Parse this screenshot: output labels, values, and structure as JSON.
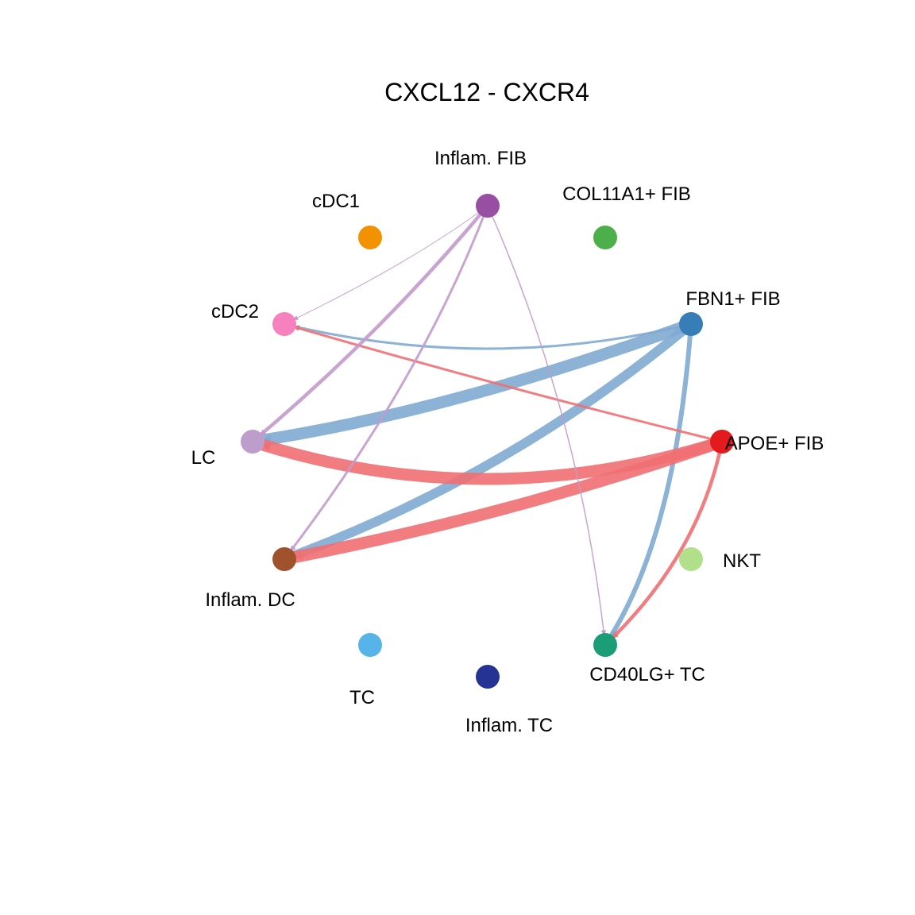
{
  "title": "CXCL12 - CXCR4",
  "nodes": [
    {
      "id": "inflam-fib",
      "label": "Inflam. FIB",
      "color": "#984EA3"
    },
    {
      "id": "col11a1-fib",
      "label": "COL11A1+ FIB",
      "color": "#4DAF4A"
    },
    {
      "id": "fbn1-fib",
      "label": "FBN1+ FIB",
      "color": "#377EB8"
    },
    {
      "id": "apoe-fib",
      "label": "APOE+ FIB",
      "color": "#E41A1C"
    },
    {
      "id": "nkt",
      "label": "NKT",
      "color": "#B2DF8A"
    },
    {
      "id": "cd40lg-tc",
      "label": "CD40LG+ TC",
      "color": "#1B9E77"
    },
    {
      "id": "inflam-tc",
      "label": "Inflam. TC",
      "color": "#253494"
    },
    {
      "id": "tc",
      "label": "TC",
      "color": "#56B4E9"
    },
    {
      "id": "inflam-dc",
      "label": "Inflam. DC",
      "color": "#A0522D"
    },
    {
      "id": "lc",
      "label": "LC",
      "color": "#BC9DCC"
    },
    {
      "id": "cdc2",
      "label": "cDC2",
      "color": "#F781BF"
    },
    {
      "id": "cdc1",
      "label": "cDC1",
      "color": "#F39200"
    }
  ],
  "edges": [
    {
      "source": "fbn1-fib",
      "target": "lc",
      "weight": 10
    },
    {
      "source": "fbn1-fib",
      "target": "inflam-dc",
      "weight": 8
    },
    {
      "source": "fbn1-fib",
      "target": "cd40lg-tc",
      "weight": 4
    },
    {
      "source": "fbn1-fib",
      "target": "cdc2",
      "weight": 2
    },
    {
      "source": "apoe-fib",
      "target": "lc",
      "weight": 10
    },
    {
      "source": "apoe-fib",
      "target": "inflam-dc",
      "weight": 10
    },
    {
      "source": "apoe-fib",
      "target": "cd40lg-tc",
      "weight": 3
    },
    {
      "source": "apoe-fib",
      "target": "cdc2",
      "weight": 2
    },
    {
      "source": "inflam-fib",
      "target": "lc",
      "weight": 3
    },
    {
      "source": "inflam-fib",
      "target": "inflam-dc",
      "weight": 2
    },
    {
      "source": "inflam-fib",
      "target": "cd40lg-tc",
      "weight": 1
    },
    {
      "source": "inflam-fib",
      "target": "cdc2",
      "weight": 0.6
    }
  ],
  "edge_colors": {
    "fbn1-fib": "#7FAAD2",
    "apoe-fib": "#EF6F72",
    "inflam-fib": "#C29BCB"
  }
}
